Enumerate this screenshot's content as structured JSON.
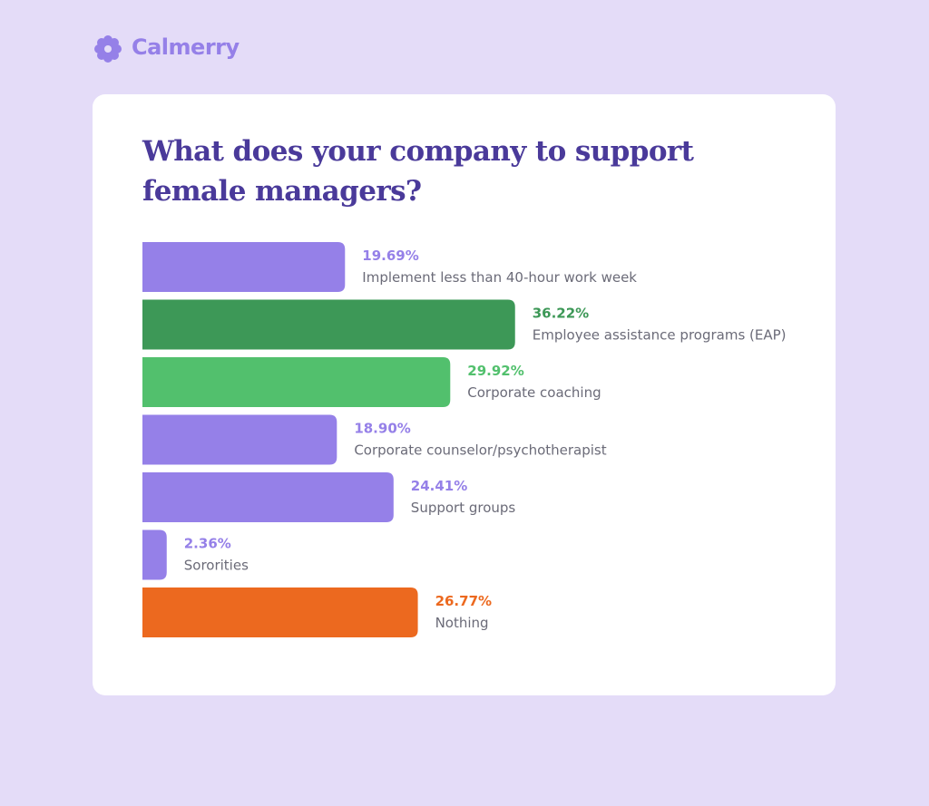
{
  "brand": "Calmerry",
  "chart_data": {
    "type": "bar",
    "orientation": "horizontal",
    "title": "What does your company to support female managers?",
    "categories": [
      "Implement less than 40-hour work week",
      "Employee assistance programs (EAP)",
      "Corporate coaching",
      "Corporate counselor/psychotherapist",
      "Support groups",
      "Sororities",
      "Nothing"
    ],
    "values": [
      19.69,
      36.22,
      29.92,
      18.9,
      24.41,
      2.36,
      26.77
    ],
    "value_labels": [
      "19.69%",
      "36.22%",
      "29.92%",
      "18.90%",
      "24.41%",
      "2.36%",
      "26.77%"
    ],
    "colors": [
      "#9580e8",
      "#3d9857",
      "#52c06d",
      "#9580e8",
      "#9580e8",
      "#9580e8",
      "#ec691f"
    ]
  }
}
